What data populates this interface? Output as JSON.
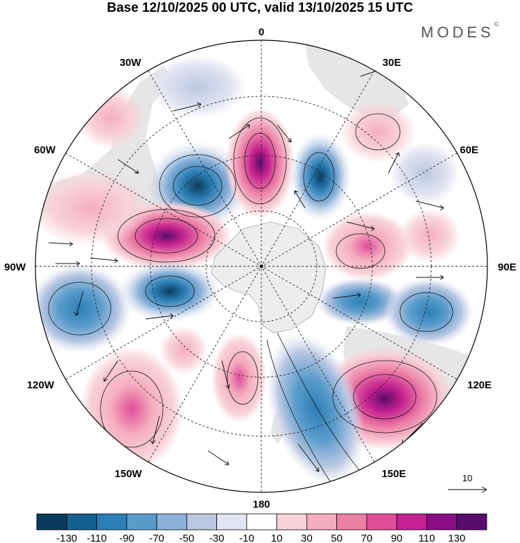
{
  "title": "Base 12/10/2025 00 UTC, valid 13/10/2025 15 UTC",
  "brand": "MODES",
  "brand_mark": "©",
  "longitude_labels": {
    "n": "0",
    "ne30": "30E",
    "ne60": "60E",
    "e": "90E",
    "se120": "120E",
    "se150": "150E",
    "s": "180",
    "sw150": "150W",
    "sw120": "120W",
    "w": "90W",
    "nw60": "60W",
    "nw30": "30W"
  },
  "vector_reference": "10",
  "colorbar": {
    "labels": [
      "-130",
      "-110",
      "-90",
      "-70",
      "-50",
      "-30",
      "-10",
      "10",
      "30",
      "50",
      "70",
      "90",
      "110",
      "130"
    ],
    "colors": [
      "#0b3b5c",
      "#155f8e",
      "#2b7fb6",
      "#5a9bcb",
      "#8cb2d9",
      "#bac8e3",
      "#e2e4f1",
      "#ffffff",
      "#f8d2d9",
      "#f5aebf",
      "#ec7fa6",
      "#e04e98",
      "#c4208f",
      "#8a0c83",
      "#570d6b"
    ]
  },
  "colors": {
    "land": "#e6e6e6",
    "antarctica": "#ededed"
  }
}
